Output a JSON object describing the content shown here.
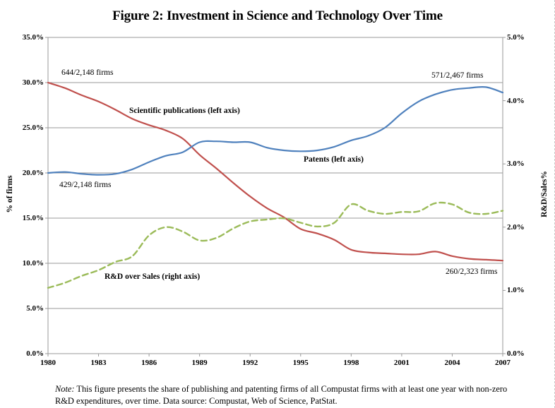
{
  "title": "Figure 2: Investment in Science and Technology Over Time",
  "chart_data": {
    "type": "line",
    "x": [
      1980,
      1981,
      1982,
      1983,
      1984,
      1985,
      1986,
      1987,
      1988,
      1989,
      1990,
      1991,
      1992,
      1993,
      1994,
      1995,
      1996,
      1997,
      1998,
      1999,
      2000,
      2001,
      2002,
      2003,
      2004,
      2005,
      2006,
      2007
    ],
    "series": [
      {
        "name": "Scientific publications",
        "axis": "left",
        "color": "#C0504D",
        "style": "solid",
        "values": [
          30.0,
          29.4,
          28.6,
          27.9,
          27.0,
          26.0,
          25.3,
          24.7,
          23.8,
          22.0,
          20.5,
          18.9,
          17.4,
          16.1,
          15.1,
          13.8,
          13.3,
          12.6,
          11.5,
          11.2,
          11.1,
          11.0,
          11.0,
          11.3,
          10.8,
          10.5,
          10.4,
          10.3
        ]
      },
      {
        "name": "Patents",
        "axis": "left",
        "color": "#4F81BD",
        "style": "solid",
        "values": [
          20.0,
          20.1,
          19.9,
          19.8,
          19.9,
          20.4,
          21.2,
          21.9,
          22.3,
          23.4,
          23.5,
          23.4,
          23.4,
          22.8,
          22.5,
          22.4,
          22.5,
          22.9,
          23.6,
          24.1,
          25.0,
          26.6,
          27.9,
          28.7,
          29.2,
          29.4,
          29.5,
          28.9
        ]
      },
      {
        "name": "R&D over Sales",
        "axis": "right",
        "color": "#9BBB59",
        "style": "dashed",
        "values": [
          1.04,
          1.12,
          1.23,
          1.32,
          1.45,
          1.54,
          1.87,
          2.0,
          1.93,
          1.79,
          1.83,
          1.98,
          2.09,
          2.12,
          2.14,
          2.07,
          2.01,
          2.07,
          2.36,
          2.26,
          2.21,
          2.24,
          2.25,
          2.38,
          2.36,
          2.23,
          2.21,
          2.26
        ]
      }
    ],
    "left_axis": {
      "label": "% of firms",
      "range": [
        0,
        35
      ],
      "ticks": [
        {
          "v": 35,
          "t": "35.0%"
        },
        {
          "v": 30,
          "t": "30.0%"
        },
        {
          "v": 25,
          "t": "25.0%"
        },
        {
          "v": 20,
          "t": "20.0%"
        },
        {
          "v": 15,
          "t": "15.0%"
        },
        {
          "v": 10,
          "t": "10.0%"
        },
        {
          "v": 5,
          "t": "5.0%"
        },
        {
          "v": 0,
          "t": "0.0%"
        }
      ]
    },
    "right_axis": {
      "label": "R&D/Sales%",
      "range": [
        0,
        5
      ],
      "ticks": [
        {
          "v": 5,
          "t": "5.0%"
        },
        {
          "v": 4,
          "t": "4.0%"
        },
        {
          "v": 3,
          "t": "3.0%"
        },
        {
          "v": 2,
          "t": "2.0%"
        },
        {
          "v": 1,
          "t": "1.0%"
        },
        {
          "v": 0,
          "t": "0.0%"
        }
      ]
    },
    "x_axis": {
      "ticks": [
        {
          "v": 1980,
          "t": "1980"
        },
        {
          "v": 1983,
          "t": "1983"
        },
        {
          "v": 1986,
          "t": "1986"
        },
        {
          "v": 1989,
          "t": "1989"
        },
        {
          "v": 1992,
          "t": "1992"
        },
        {
          "v": 1995,
          "t": "1995"
        },
        {
          "v": 1998,
          "t": "1998"
        },
        {
          "v": 2001,
          "t": "2001"
        },
        {
          "v": 2004,
          "t": "2004"
        },
        {
          "v": 2007,
          "t": "2007"
        }
      ]
    },
    "grid": true,
    "legend_position": "none",
    "annotations": [
      {
        "text": "644/2,148 firms"
      },
      {
        "text": "429/2,148 firms"
      },
      {
        "text": "571/2,467 firms"
      },
      {
        "text": "260/2,323 firms"
      },
      {
        "text": "Scientific publications (left axis)"
      },
      {
        "text": "Patents (left axis)"
      },
      {
        "text": "R&D over Sales (right axis)"
      }
    ]
  },
  "note": {
    "prefix": "Note:",
    "line1": "This figure presents the share of publishing  and patenting firms of all Compustat firms with at least one year with non-zero",
    "line2": "R&D expenditures, over time. Data source: Compustat, Web of Science, PatStat."
  },
  "style": {
    "grid_color": "#9a9a9a",
    "border_color": "#9a9a9a",
    "text_color": "#000000"
  }
}
